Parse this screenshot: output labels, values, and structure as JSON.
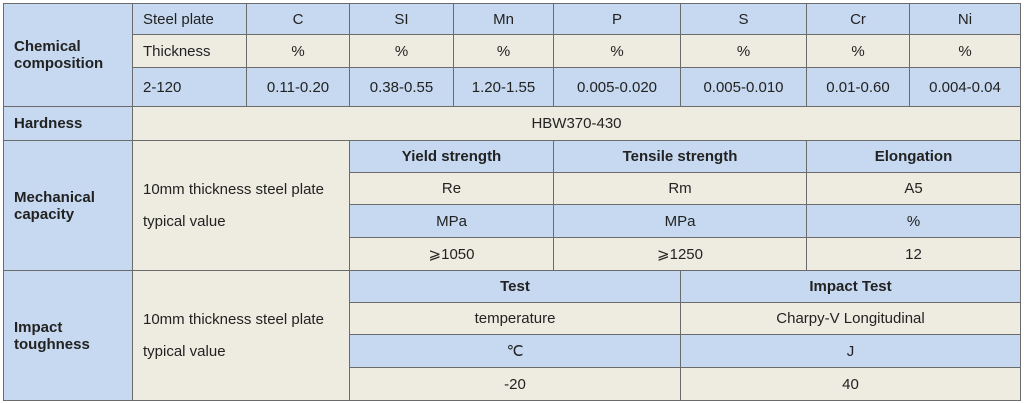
{
  "chemical_composition": {
    "label": "Chemical composition",
    "header": [
      "Steel plate",
      "C",
      "SI",
      "Mn",
      "P",
      "S",
      "Cr",
      "Ni"
    ],
    "units": [
      "Thickness",
      "%",
      "%",
      "%",
      "%",
      "%",
      "%",
      "%"
    ],
    "values": [
      "2-120",
      "0.11-0.20",
      "0.38-0.55",
      "1.20-1.55",
      "0.005-0.020",
      "0.005-0.010",
      "0.01-0.60",
      "0.004-0.04"
    ]
  },
  "hardness": {
    "label": "Hardness",
    "value": "HBW370-430"
  },
  "mechanical_capacity": {
    "label": "Mechanical capacity",
    "description": "10mm thickness steel plate typical value",
    "columns": [
      "Yield strength",
      "Tensile strength",
      "Elongation"
    ],
    "rows": [
      [
        "Re",
        "Rm",
        "A5"
      ],
      [
        "MPa",
        "MPa",
        "%"
      ],
      [
        "⩾1050",
        "⩾1250",
        "12"
      ]
    ]
  },
  "impact_toughness": {
    "label": "Impact toughness",
    "description": "10mm thickness steel plate typical value",
    "columns": [
      "Test",
      "Impact Test"
    ],
    "rows": [
      [
        "temperature",
        "Charpy-V Longitudinal"
      ],
      [
        "℃",
        "J"
      ],
      [
        "-20",
        "40"
      ]
    ]
  }
}
